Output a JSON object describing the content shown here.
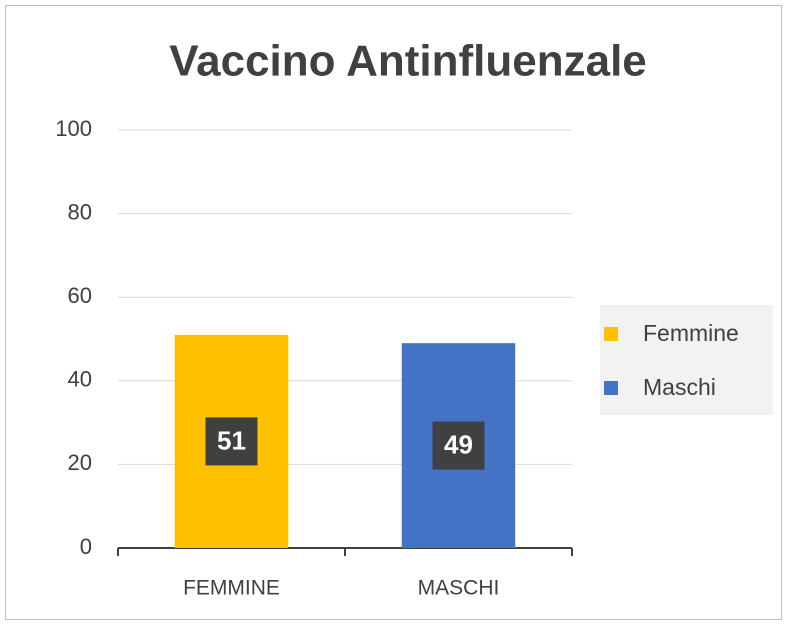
{
  "chart_data": {
    "type": "bar",
    "title": "Vaccino Antinfluenzale",
    "categories": [
      "FEMMINE",
      "MASCHI"
    ],
    "series": [
      {
        "name": "Femmine",
        "color": "#ffc000",
        "values": [
          51,
          null
        ]
      },
      {
        "name": "Maschi",
        "color": "#4472c4",
        "values": [
          null,
          49
        ]
      }
    ],
    "ylim": [
      0,
      100
    ],
    "yticks": [
      0,
      20,
      40,
      60,
      80,
      100
    ],
    "grid": true,
    "legend": "right"
  }
}
